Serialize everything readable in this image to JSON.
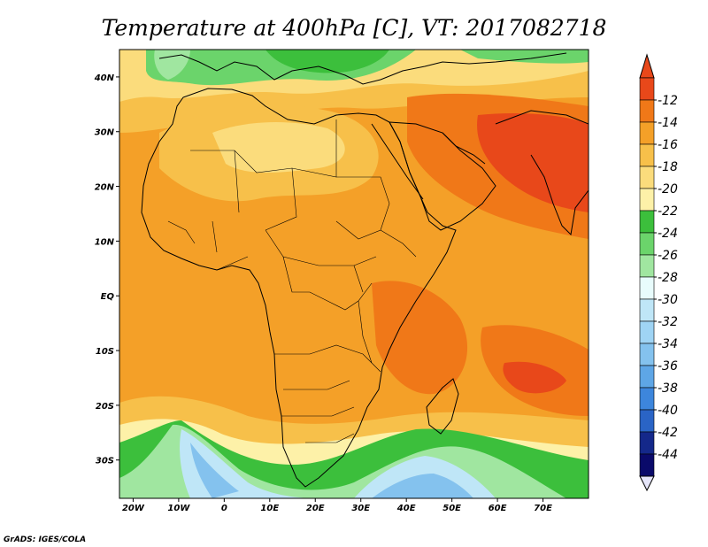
{
  "title": "Temperature at 400hPa [C], VT: 2017082718",
  "credit": "GrADS: IGES/COLA",
  "map": {
    "lon_range": [
      -23,
      80
    ],
    "lat_range": [
      -37,
      45
    ],
    "lon_ticks": [
      "20W",
      "10W",
      "0",
      "10E",
      "20E",
      "30E",
      "40E",
      "50E",
      "60E",
      "70E"
    ],
    "lat_ticks": [
      "40N",
      "30N",
      "20N",
      "10N",
      "EQ",
      "10S",
      "20S",
      "30S"
    ],
    "variable": "Temperature",
    "level": "400hPa",
    "units": "C",
    "valid_time": "2017082718",
    "features": [
      "temperature-field",
      "coastlines",
      "country-borders"
    ]
  },
  "colorbar": {
    "labels": [
      "-12",
      "-14",
      "-16",
      "-18",
      "-20",
      "-22",
      "-24",
      "-26",
      "-28",
      "-30",
      "-32",
      "-34",
      "-36",
      "-38",
      "-40",
      "-42",
      "-44"
    ],
    "colors_top_to_bottom": [
      "#e8481a",
      "#f07818",
      "#f4a028",
      "#f7c04a",
      "#fbdc7c",
      "#fdf1a8",
      "#3cbf3c",
      "#6bd46b",
      "#a0e6a0",
      "#e8fcfc",
      "#bfe6f7",
      "#9fd4f4",
      "#84c2ee",
      "#5ea6e6",
      "#3d86dc",
      "#2a64c6",
      "#14288a",
      "#0a0a6a"
    ],
    "overflow_low_color": "#e6e6fa",
    "overflow_high_color": "#e8481a"
  }
}
